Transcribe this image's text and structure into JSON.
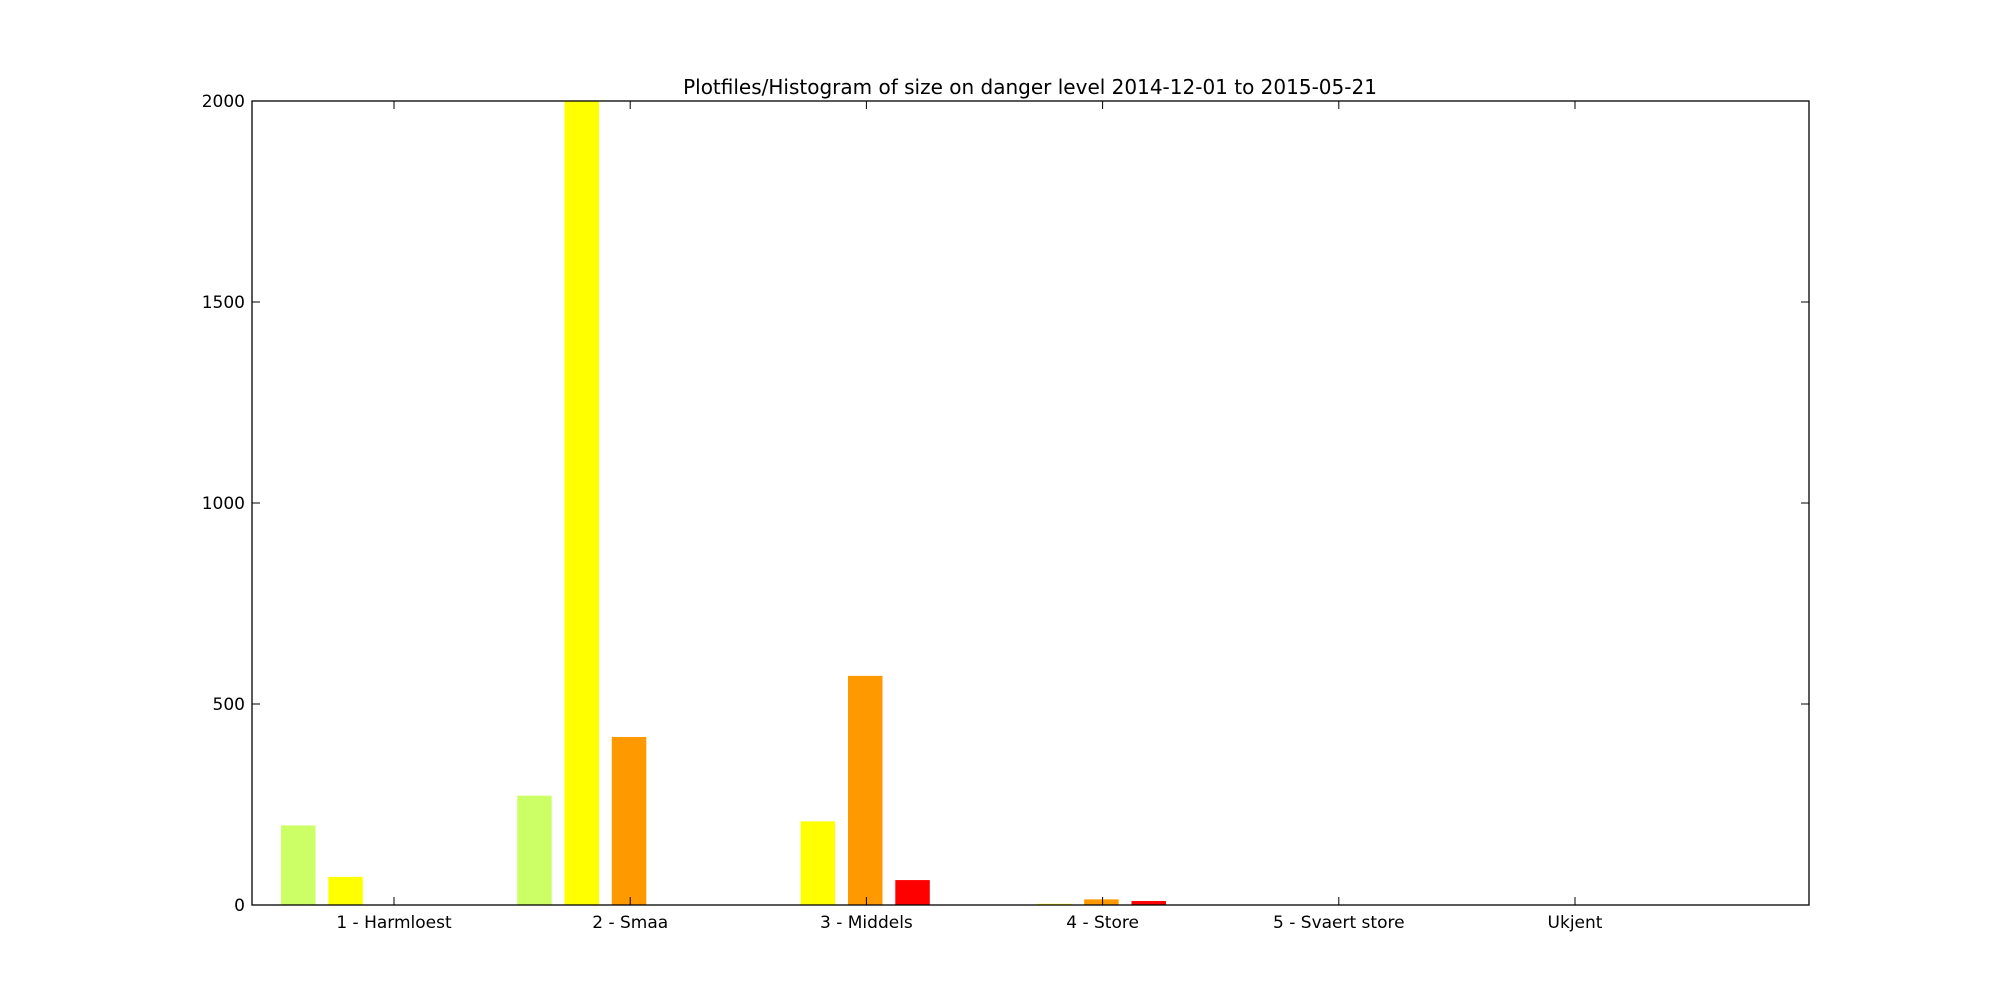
{
  "chart_data": {
    "type": "bar",
    "title": "Plotfiles/Histogram of size on danger level 2014-12-01 to 2015-05-21",
    "xlabel": "",
    "ylabel": "",
    "categories": [
      "1 - Harmloest",
      "2 - Smaa",
      "3 - Middels",
      "4 - Store",
      "5 - Svaert store",
      "Ukjent"
    ],
    "ylim": [
      0,
      2000
    ],
    "yticks": [
      0,
      500,
      1000,
      1500,
      2000
    ],
    "grid": false,
    "series": [
      {
        "color": "#ccff66",
        "values": [
          198,
          272,
          0,
          0,
          0,
          0
        ]
      },
      {
        "color": "#ffff00",
        "values": [
          70,
          2000,
          208,
          3,
          0,
          0
        ]
      },
      {
        "color": "#ff9900",
        "values": [
          0,
          418,
          570,
          14,
          0,
          0
        ]
      },
      {
        "color": "#ff0000",
        "values": [
          0,
          0,
          62,
          10,
          0,
          0
        ]
      }
    ]
  }
}
